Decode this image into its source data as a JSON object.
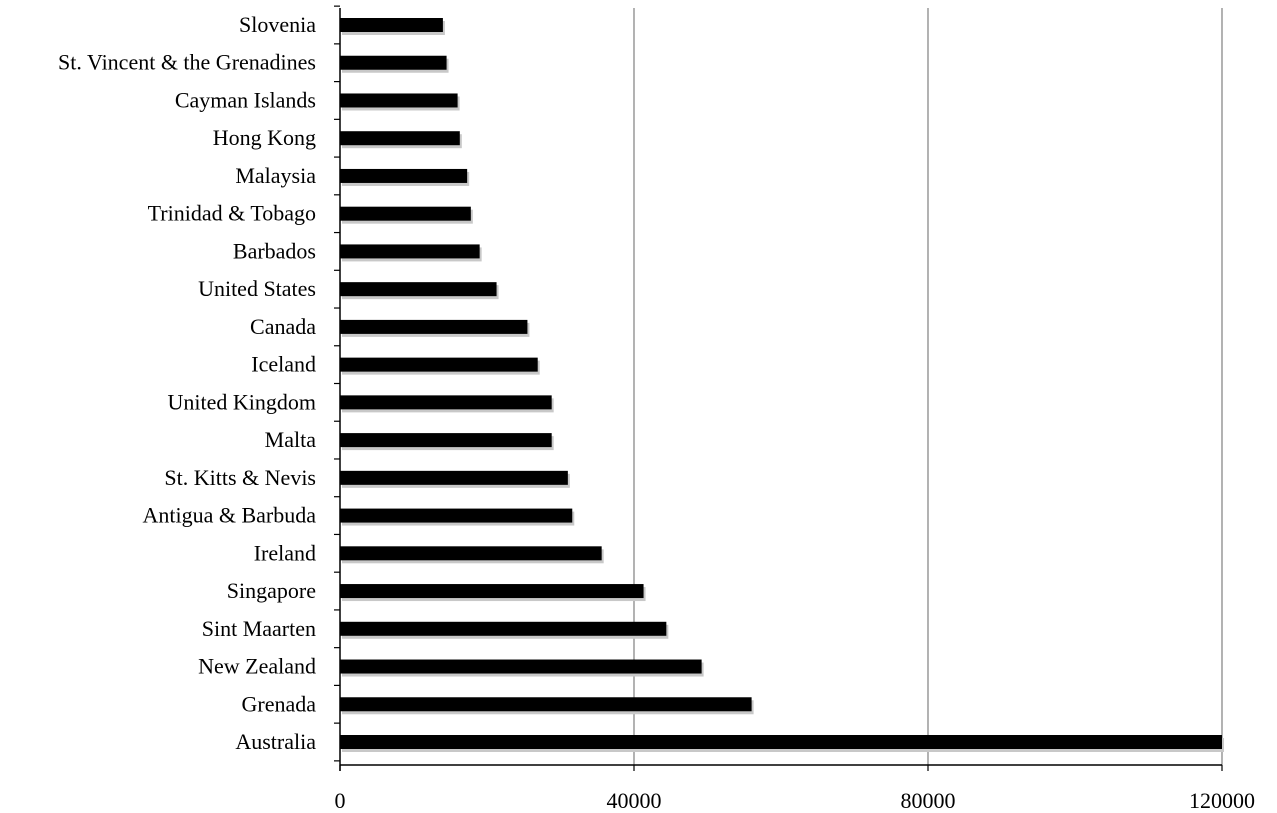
{
  "chart_data": {
    "type": "bar",
    "orientation": "horizontal",
    "title": "",
    "xlabel": "",
    "ylabel": "",
    "categories": [
      "Slovenia",
      "St. Vincent & the Grenadines",
      "Cayman Islands",
      "Hong Kong",
      "Malaysia",
      "Trinidad & Tobago",
      "Barbados",
      "United States",
      "Canada",
      "Iceland",
      "United Kingdom",
      "Malta",
      "St. Kitts & Nevis",
      "Antigua & Barbuda",
      "Ireland",
      "Singapore",
      "Sint Maarten",
      "New Zealand",
      "Grenada",
      "Australia"
    ],
    "values": [
      14000,
      14500,
      16000,
      16300,
      17300,
      17800,
      19000,
      21300,
      25500,
      26900,
      28800,
      28800,
      31000,
      31600,
      35600,
      41300,
      44400,
      49200,
      56000,
      120000
    ],
    "xlim": [
      0,
      120000
    ],
    "xticks": [
      "0",
      "40000",
      "80000",
      "120000"
    ],
    "xtick_values": [
      0,
      40000,
      80000,
      120000
    ],
    "grid": "vertical",
    "legend": "none",
    "bar_color": "#000000",
    "grid_color": "#808080"
  }
}
